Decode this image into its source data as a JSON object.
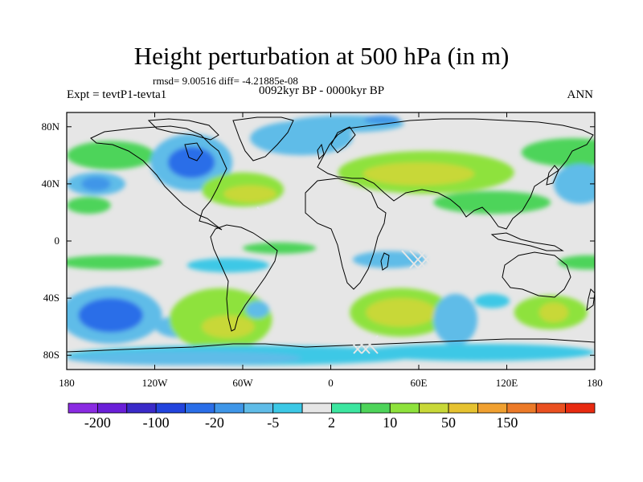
{
  "title": "Height perturbation at 500 hPa (in m)",
  "stats": "rmsd= 9.00516 diff= -4.21885e-08",
  "period": "0092kyr BP - 0000kyr BP",
  "experiment": "Expt = tevtP1-tevta1",
  "season": "ANN",
  "chart_data": {
    "type": "heatmap",
    "projection": "cylindrical equidistant",
    "lon_range": [
      -180,
      180
    ],
    "lat_range": [
      -90,
      90
    ],
    "y_ticks": [
      {
        "value": 80,
        "label": "80N"
      },
      {
        "value": 40,
        "label": "40N"
      },
      {
        "value": 0,
        "label": "0"
      },
      {
        "value": -40,
        "label": "40S"
      },
      {
        "value": -80,
        "label": "80S"
      }
    ],
    "x_ticks": [
      {
        "value": -180,
        "label": "180"
      },
      {
        "value": -120,
        "label": "120W"
      },
      {
        "value": -60,
        "label": "60W"
      },
      {
        "value": 0,
        "label": "0"
      },
      {
        "value": 60,
        "label": "60E"
      },
      {
        "value": 120,
        "label": "120E"
      },
      {
        "value": 180,
        "label": "180"
      }
    ],
    "colorbar_colors": [
      "#8a2be2",
      "#6a1fd8",
      "#3a2ac8",
      "#2244dd",
      "#2a6ee8",
      "#3f96e8",
      "#5fbce8",
      "#3cc8e6",
      "#e6e6e6",
      "#3ce6a0",
      "#4ed45a",
      "#8ee23c",
      "#c8d838",
      "#e6c230",
      "#f0a030",
      "#ec7a28",
      "#ea5020",
      "#e82a10"
    ],
    "colorbar_labels": [
      {
        "index": 1,
        "label": "-200"
      },
      {
        "index": 3,
        "label": "-100"
      },
      {
        "index": 5,
        "label": "-20"
      },
      {
        "index": 7,
        "label": "-5"
      },
      {
        "index": 9,
        "label": "2"
      },
      {
        "index": 11,
        "label": "10"
      },
      {
        "index": 13,
        "label": "50"
      },
      {
        "index": 15,
        "label": "150"
      }
    ],
    "background_value": "near zero (-2 to 2)",
    "anomalies": [
      {
        "lon": -150,
        "lat": 60,
        "rlon": 30,
        "rlat": 10,
        "level": 10
      },
      {
        "lon": -95,
        "lat": 55,
        "rlon": 28,
        "rlat": 20,
        "level": 6
      },
      {
        "lon": -95,
        "lat": 55,
        "rlon": 16,
        "rlat": 11,
        "level": 4
      },
      {
        "lon": -160,
        "lat": 40,
        "rlon": 20,
        "rlat": 8,
        "level": 6
      },
      {
        "lon": -160,
        "lat": 40,
        "rlon": 10,
        "rlat": 5,
        "level": 5
      },
      {
        "lon": -60,
        "lat": 36,
        "rlon": 28,
        "rlat": 12,
        "level": 11
      },
      {
        "lon": -55,
        "lat": 33,
        "rlon": 18,
        "rlat": 6,
        "level": 12
      },
      {
        "lon": -20,
        "lat": 72,
        "rlon": 35,
        "rlat": 12,
        "level": 6
      },
      {
        "lon": 10,
        "lat": 82,
        "rlon": 40,
        "rlat": 6,
        "level": 6
      },
      {
        "lon": 35,
        "lat": 85,
        "rlon": 12,
        "rlat": 3,
        "level": 5
      },
      {
        "lon": 65,
        "lat": 48,
        "rlon": 60,
        "rlat": 15,
        "level": 11
      },
      {
        "lon": 60,
        "lat": 47,
        "rlon": 38,
        "rlat": 8,
        "level": 12
      },
      {
        "lon": 165,
        "lat": 62,
        "rlon": 35,
        "rlat": 10,
        "level": 10
      },
      {
        "lon": 110,
        "lat": 27,
        "rlon": 40,
        "rlat": 8,
        "level": 10
      },
      {
        "lon": 170,
        "lat": 40,
        "rlon": 18,
        "rlat": 14,
        "level": 6
      },
      {
        "lon": -165,
        "lat": 25,
        "rlon": 15,
        "rlat": 6,
        "level": 10
      },
      {
        "lon": -150,
        "lat": -15,
        "rlon": 35,
        "rlat": 5,
        "level": 10
      },
      {
        "lon": -70,
        "lat": -17,
        "rlon": 28,
        "rlat": 5,
        "level": 7
      },
      {
        "lon": -35,
        "lat": -5,
        "rlon": 25,
        "rlat": 4,
        "level": 10
      },
      {
        "lon": 40,
        "lat": -13,
        "rlon": 25,
        "rlat": 6,
        "level": 6
      },
      {
        "lon": 175,
        "lat": -15,
        "rlon": 20,
        "rlat": 5,
        "level": 10
      },
      {
        "lon": -150,
        "lat": -52,
        "rlon": 35,
        "rlat": 20,
        "level": 6
      },
      {
        "lon": -150,
        "lat": -52,
        "rlon": 22,
        "rlat": 12,
        "level": 4
      },
      {
        "lon": -100,
        "lat": -60,
        "rlon": 20,
        "rlat": 8,
        "level": 6
      },
      {
        "lon": -75,
        "lat": -55,
        "rlon": 35,
        "rlat": 22,
        "level": 11
      },
      {
        "lon": -70,
        "lat": -60,
        "rlon": 18,
        "rlat": 8,
        "level": 12
      },
      {
        "lon": -50,
        "lat": -48,
        "rlon": 8,
        "rlat": 6,
        "level": 6
      },
      {
        "lon": 48,
        "lat": -50,
        "rlon": 35,
        "rlat": 17,
        "level": 11
      },
      {
        "lon": 48,
        "lat": -50,
        "rlon": 24,
        "rlat": 10,
        "level": 12
      },
      {
        "lon": 85,
        "lat": -55,
        "rlon": 15,
        "rlat": 18,
        "level": 6
      },
      {
        "lon": 150,
        "lat": -50,
        "rlon": 25,
        "rlat": 12,
        "level": 11
      },
      {
        "lon": 152,
        "lat": -50,
        "rlon": 10,
        "rlat": 7,
        "level": 12
      },
      {
        "lon": 110,
        "lat": -42,
        "rlon": 12,
        "rlat": 5,
        "level": 7
      },
      {
        "lon": -60,
        "lat": -80,
        "rlon": 120,
        "rlat": 7,
        "level": 7
      },
      {
        "lon": 100,
        "lat": -78,
        "rlon": 80,
        "rlat": 6,
        "level": 7
      },
      {
        "lon": -100,
        "lat": -82,
        "rlon": 80,
        "rlat": 5,
        "level": 6
      }
    ]
  }
}
